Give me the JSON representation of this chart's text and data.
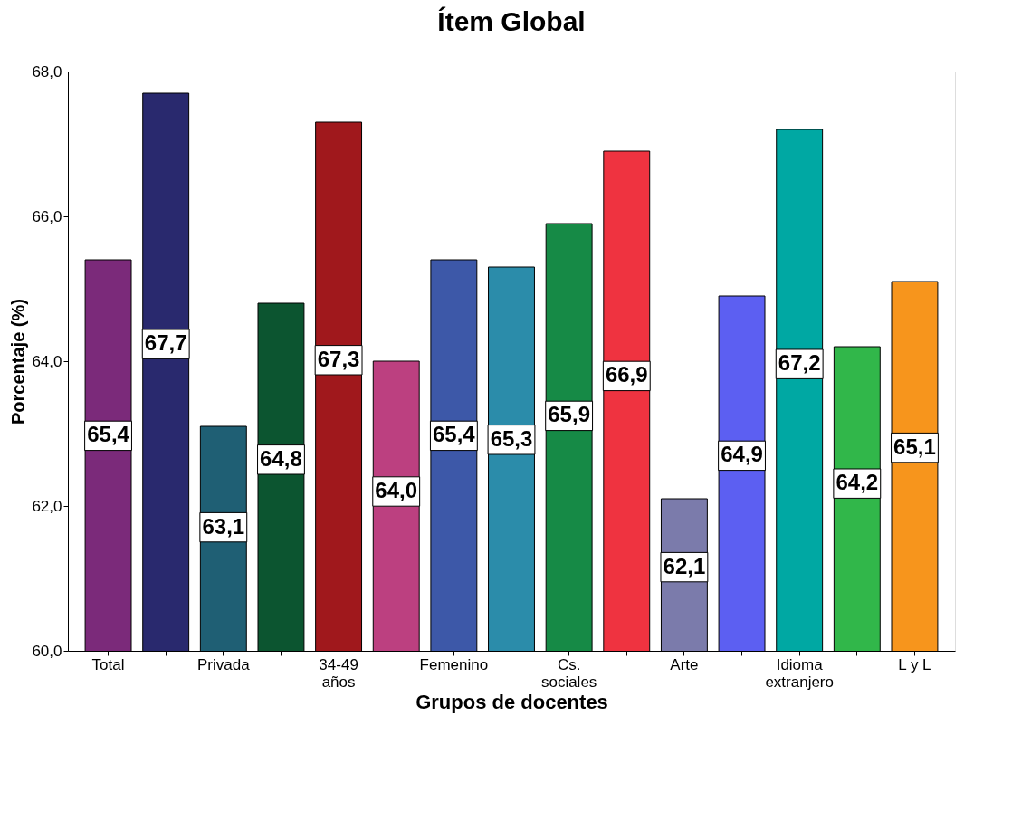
{
  "chart_data": {
    "type": "bar",
    "title": "Ítem Global",
    "xlabel": "Grupos de docentes",
    "ylabel": "Porcentaje (%)",
    "categories": [
      "Total",
      null,
      "Privada",
      null,
      "34-49\naños",
      null,
      "Femenino",
      null,
      "Cs.\nsociales",
      null,
      "Arte",
      null,
      "Idioma\nextranjero",
      null,
      "L y L"
    ],
    "values": [
      65.4,
      67.7,
      63.1,
      64.8,
      67.3,
      64.0,
      65.4,
      65.3,
      65.9,
      66.9,
      62.1,
      64.9,
      67.2,
      64.2,
      65.1
    ],
    "value_labels": [
      "65,4",
      "67,7",
      "63,1",
      "64,8",
      "67,3",
      "64,0",
      "65,4",
      "65,3",
      "65,9",
      "66,9",
      "62,1",
      "64,9",
      "67,2",
      "64,2",
      "65,1"
    ],
    "colors": [
      "#7b2a7a",
      "#29296e",
      "#1f5f74",
      "#0c5530",
      "#a0181c",
      "#bc4080",
      "#3d58a8",
      "#2b8caa",
      "#168a46",
      "#ef3340",
      "#7b7bab",
      "#5c5ff2",
      "#00a8a3",
      "#31b74a",
      "#f7951c"
    ],
    "ylim": [
      60,
      68
    ],
    "yticks": [
      {
        "value": 60,
        "label": "60,0"
      },
      {
        "value": 62,
        "label": "62,0"
      },
      {
        "value": 64,
        "label": "64,0"
      },
      {
        "value": 66,
        "label": "66,0"
      },
      {
        "value": 68,
        "label": "68,0"
      }
    ],
    "grid": false
  }
}
